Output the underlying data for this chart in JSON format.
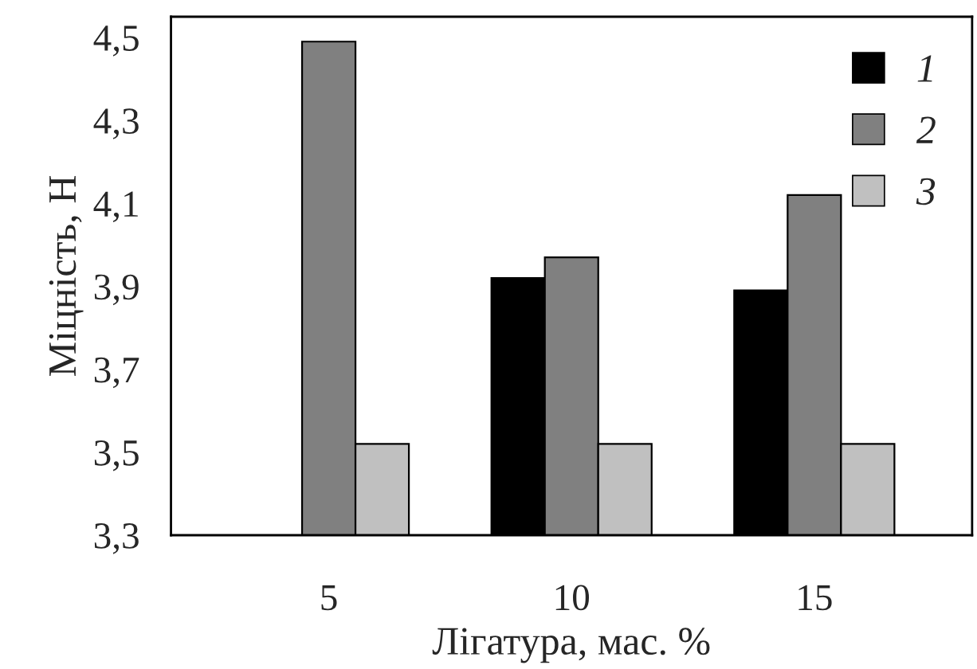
{
  "chart_data": {
    "type": "bar",
    "xlabel": "Лігатура, мас. %",
    "ylabel": "Міцність, Н",
    "categories": [
      "5",
      "10",
      "15"
    ],
    "series": [
      {
        "name": "1",
        "color": "#000000",
        "values": [
          3.3,
          3.92,
          3.89
        ]
      },
      {
        "name": "2",
        "color": "#808080",
        "values": [
          4.49,
          3.97,
          4.12
        ]
      },
      {
        "name": "3",
        "color": "#c0c0c0",
        "values": [
          3.52,
          3.52,
          3.52
        ]
      }
    ],
    "ylim": [
      3.3,
      4.55
    ],
    "yticks": [
      {
        "value": 3.3,
        "label": "3,3"
      },
      {
        "value": 3.5,
        "label": "3,5"
      },
      {
        "value": 3.7,
        "label": "3,7"
      },
      {
        "value": 3.9,
        "label": "3,9"
      },
      {
        "value": 4.1,
        "label": "4,1"
      },
      {
        "value": 4.3,
        "label": "4,3"
      },
      {
        "value": 4.5,
        "label": "4,5"
      }
    ],
    "legend": "top right",
    "grid": false
  }
}
